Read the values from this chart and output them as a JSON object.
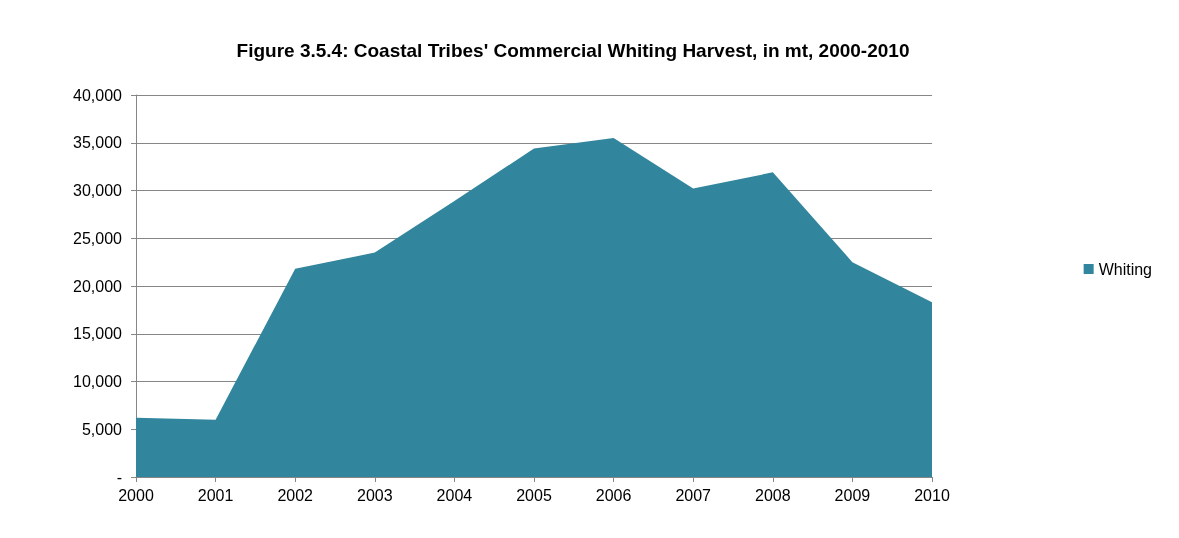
{
  "chart_data": {
    "type": "area",
    "title": "Figure 3.5.4: Coastal Tribes' Commercial Whiting Harvest, in mt, 2000-2010",
    "categories": [
      "2000",
      "2001",
      "2002",
      "2003",
      "2004",
      "2005",
      "2006",
      "2007",
      "2008",
      "2009",
      "2010"
    ],
    "series": [
      {
        "name": "Whiting",
        "color": "#31859c",
        "values": [
          6200,
          6000,
          21800,
          23500,
          28900,
          34400,
          35500,
          30200,
          31900,
          22500,
          18300
        ]
      }
    ],
    "ylim": [
      0,
      40000
    ],
    "yticks": [
      {
        "value": 0,
        "label": "-"
      },
      {
        "value": 5000,
        "label": "5,000"
      },
      {
        "value": 10000,
        "label": "10,000"
      },
      {
        "value": 15000,
        "label": "15,000"
      },
      {
        "value": 20000,
        "label": "20,000"
      },
      {
        "value": 25000,
        "label": "25,000"
      },
      {
        "value": 30000,
        "label": "30,000"
      },
      {
        "value": 35000,
        "label": "35,000"
      },
      {
        "value": 40000,
        "label": "40,000"
      }
    ],
    "grid": "y",
    "legend": "right"
  }
}
